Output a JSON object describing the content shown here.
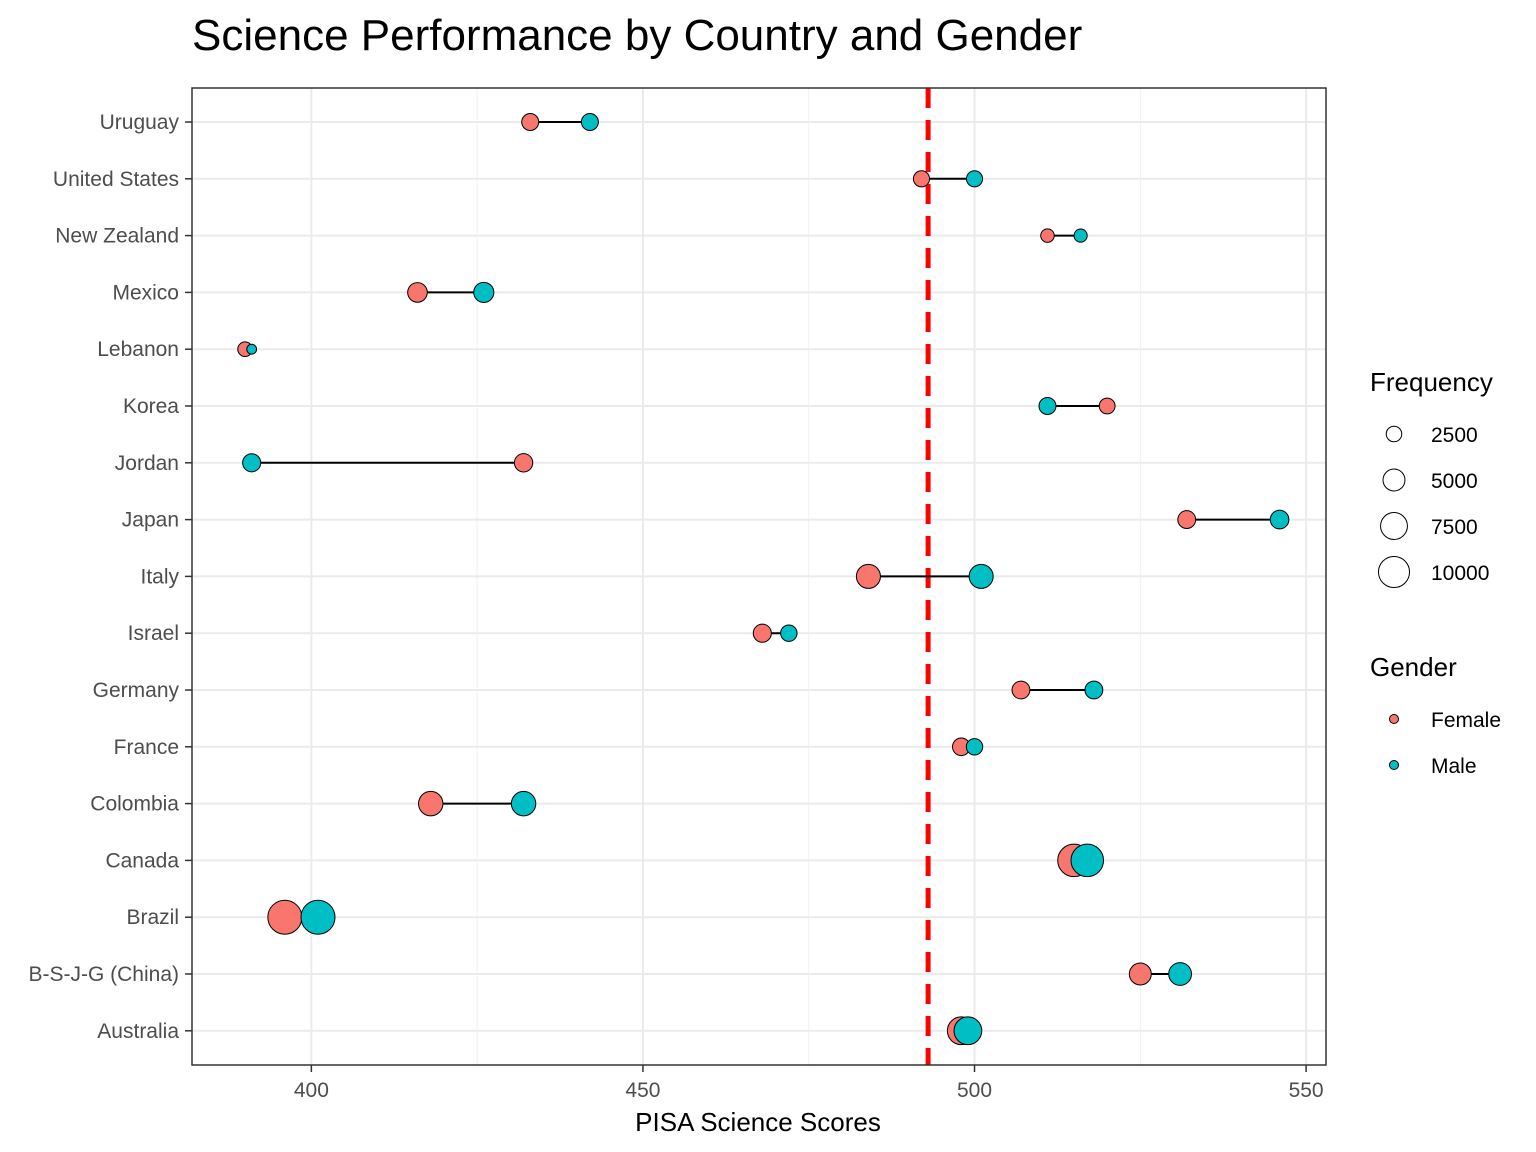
{
  "chart_data": {
    "type": "scatter",
    "title": "Science Performance by Country and Gender",
    "xlabel": "PISA Science Scores",
    "ylabel": "",
    "xlim": [
      382,
      553
    ],
    "xticks": [
      400,
      450,
      500,
      550
    ],
    "grid": true,
    "reference_line": {
      "x": 493,
      "color": "#ff0000",
      "style": "dashed"
    },
    "categories": [
      "Uruguay",
      "United States",
      "New Zealand",
      "Mexico",
      "Lebanon",
      "Korea",
      "Jordan",
      "Japan",
      "Italy",
      "Israel",
      "Germany",
      "France",
      "Colombia",
      "Canada",
      "Brazil",
      "B-S-J-G (China)",
      "Australia"
    ],
    "series": [
      {
        "name": "Female",
        "color": "#F8766D",
        "values": [
          433,
          492,
          511,
          416,
          390,
          520,
          432,
          532,
          484,
          468,
          507,
          498,
          418,
          515,
          396,
          525,
          498
        ],
        "frequency": [
          3000,
          2700,
          1900,
          4000,
          2200,
          2600,
          3500,
          3300,
          6000,
          3400,
          3300,
          3200,
          6200,
          11000,
          12000,
          5000,
          8000
        ]
      },
      {
        "name": "Male",
        "color": "#00BFC4",
        "values": [
          442,
          500,
          516,
          426,
          391,
          511,
          391,
          546,
          501,
          472,
          518,
          500,
          432,
          517,
          401,
          531,
          499
        ],
        "frequency": [
          3000,
          2700,
          1800,
          4200,
          1000,
          3000,
          3400,
          3600,
          6000,
          2800,
          3300,
          2800,
          6200,
          11000,
          12000,
          5400,
          8000
        ]
      }
    ],
    "size_legend": {
      "title": "Frequency",
      "values": [
        2500,
        5000,
        7500,
        10000
      ]
    },
    "color_legend": {
      "title": "Gender",
      "entries": [
        "Female",
        "Male"
      ]
    },
    "legend_position": "right"
  }
}
